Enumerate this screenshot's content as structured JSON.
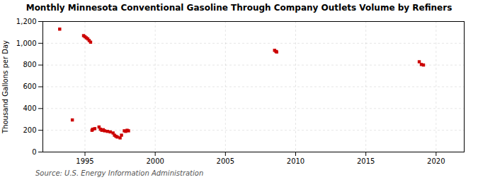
{
  "chart_data": {
    "type": "scatter",
    "title": "Monthly Minnesota Conventional Gasoline Through Company Outlets Volume by Refiners",
    "ylabel": "Thousand Gallons per Day",
    "source": "Source: U.S. Energy Information Administration",
    "x": [
      1993.2,
      1994.1,
      1994.9,
      1995.0,
      1995.1,
      1995.2,
      1995.3,
      1995.4,
      1995.5,
      1995.55,
      1995.7,
      1996.0,
      1996.1,
      1996.2,
      1996.3,
      1996.4,
      1996.6,
      1996.8,
      1997.0,
      1997.1,
      1997.2,
      1997.3,
      1997.5,
      1997.6,
      1997.8,
      1997.9,
      1998.0,
      1998.1,
      2008.5,
      2008.6,
      2008.65,
      2018.8,
      2018.95,
      2019.1
    ],
    "values": [
      1130,
      295,
      1070,
      1060,
      1050,
      1040,
      1025,
      1010,
      200,
      210,
      215,
      230,
      210,
      200,
      205,
      195,
      190,
      185,
      175,
      155,
      145,
      138,
      130,
      155,
      195,
      190,
      200,
      195,
      935,
      925,
      920,
      830,
      805,
      800
    ],
    "color": "#cc0000",
    "marker": "square",
    "xlim": [
      1992,
      2022
    ],
    "ylim": [
      0,
      1200
    ],
    "xticks": [
      1995,
      2000,
      2005,
      2010,
      2015,
      2020
    ],
    "yticks": [
      0,
      200,
      400,
      600,
      800,
      {
        "value": 1000,
        "label": "1,000"
      },
      {
        "value": 1200,
        "label": "1,200"
      }
    ],
    "grid": true
  }
}
